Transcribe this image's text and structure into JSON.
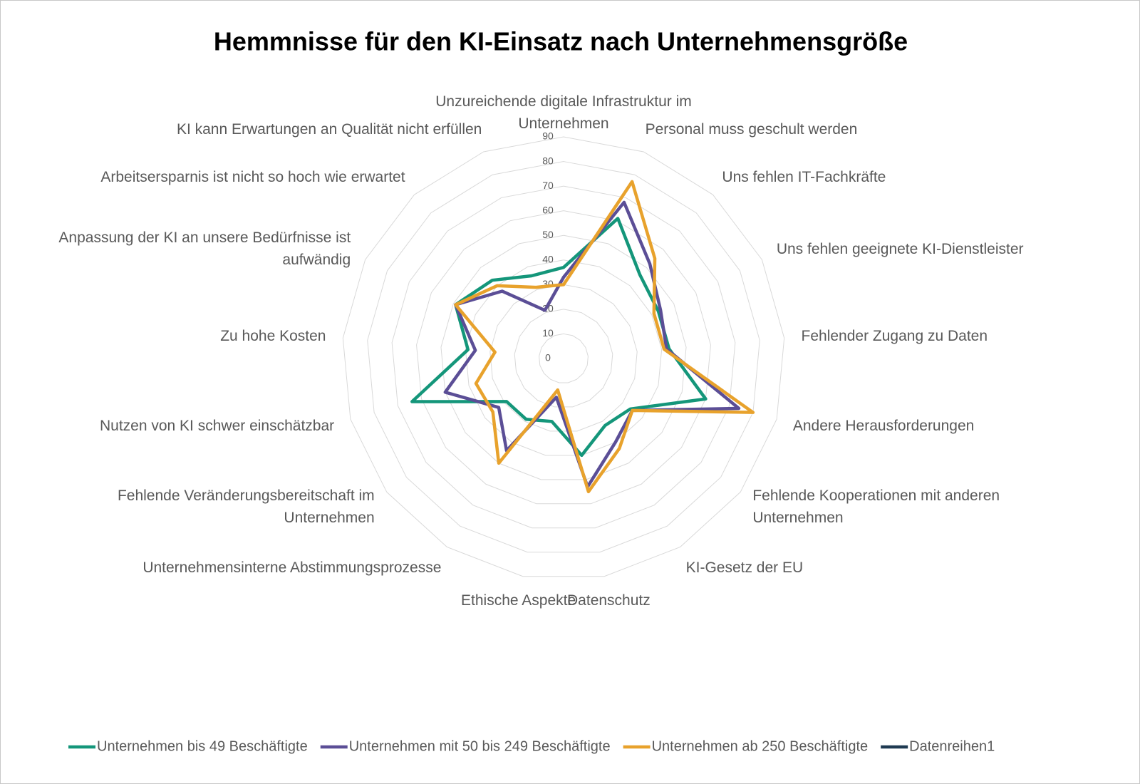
{
  "chart_data": {
    "type": "radar",
    "title": "Hemmnisse für den KI-Einsatz nach Unternehmensgröße",
    "categories": [
      "Unzureichende digitale Infrastruktur im Unternehmen",
      "Personal muss geschult werden",
      "Uns fehlen IT-Fachkräfte",
      "Uns fehlen geeignete KI-Dienstleister",
      "Fehlender Zugang zu Daten",
      "Andere Herausforderungen",
      "Fehlende Kooperationen mit anderen Unternehmen",
      "KI-Gesetz der EU",
      "Datenschutz",
      "Ethische Aspekte",
      "Unternehmensinterne Abstimmungsprozesse",
      "Fehlende Veränderungsbereitschaft im Unternehmen",
      "Nutzen von KI schwer einschätzbar",
      "Zu hohe Kosten",
      "Anpassung der KI an unsere Bedürfnisse ist aufwändig",
      "Arbeitsersparnis ist nicht so hoch wie erwartet",
      "KI kann Erwartungen an Qualität nicht erfüllen"
    ],
    "series": [
      {
        "name": "Unternehmen bis 49 Beschäftigte",
        "color": "#14967a",
        "values": [
          37,
          61,
          46,
          43,
          43,
          60,
          34,
          32,
          40,
          26,
          29,
          29,
          64,
          39,
          49,
          43,
          36
        ]
      },
      {
        "name": "Unternehmen mit 50 bis 249 Beschäftigte",
        "color": "#5b4e96",
        "values": [
          33,
          68,
          52,
          44,
          42,
          74,
          35,
          40,
          53,
          16,
          44,
          33,
          50,
          36,
          49,
          37,
          21
        ]
      },
      {
        "name": "Unternehmen ab 250 Beschäftigte",
        "color": "#e8a22c",
        "values": [
          30,
          77,
          55,
          41,
          41,
          80,
          35,
          43,
          55,
          13,
          50,
          36,
          37,
          28,
          49,
          40,
          31
        ]
      },
      {
        "name": "Datenreihen1",
        "color": "#1f3a52",
        "values": [
          null,
          null,
          null,
          null,
          null,
          null,
          null,
          null,
          null,
          null,
          null,
          null,
          null,
          null,
          null,
          null,
          null
        ]
      }
    ],
    "ylim": [
      0,
      90
    ],
    "yticks": [
      0,
      10,
      20,
      30,
      40,
      50,
      60,
      70,
      80,
      90
    ],
    "grid": true,
    "legend": "bottom"
  }
}
